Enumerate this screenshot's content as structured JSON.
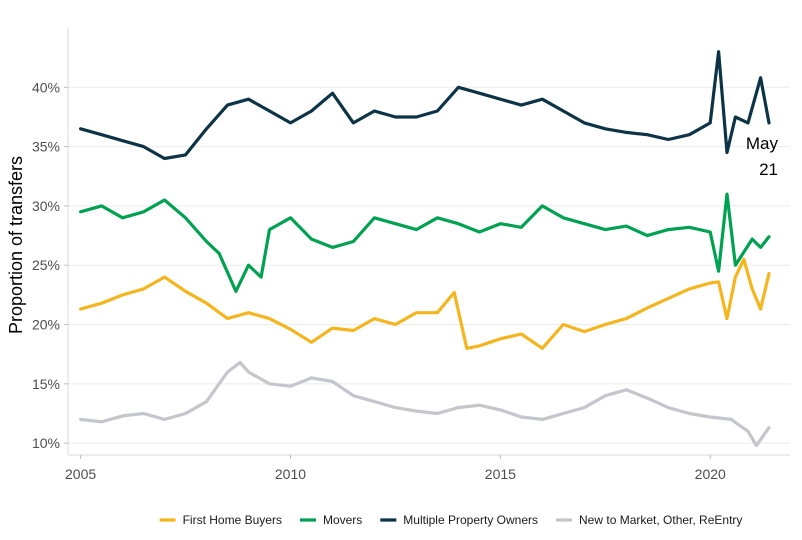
{
  "chart_data": {
    "type": "line",
    "title": "",
    "xlabel": "",
    "ylabel": "Proportion of transfers",
    "xlim": [
      2004.7,
      2021.9
    ],
    "ylim": [
      0.09,
      0.45
    ],
    "x_ticks": [
      2005,
      2010,
      2015,
      2020
    ],
    "x_tick_labels": [
      "2005",
      "2010",
      "2015",
      "2020"
    ],
    "y_ticks": [
      0.1,
      0.15,
      0.2,
      0.25,
      0.3,
      0.35,
      0.4
    ],
    "y_tick_labels": [
      "10%",
      "15%",
      "20%",
      "25%",
      "30%",
      "35%",
      "40%"
    ],
    "grid": true,
    "legend_position": "bottom",
    "annotation": {
      "lines": [
        "May",
        "21"
      ],
      "x": 2021.4
    },
    "series": [
      {
        "name": "First Home Buyers",
        "color": "#f5b51e",
        "x": [
          2005.0,
          2005.5,
          2006.0,
          2006.5,
          2007.0,
          2007.5,
          2008.0,
          2008.5,
          2009.0,
          2009.5,
          2010.0,
          2010.5,
          2011.0,
          2011.5,
          2012.0,
          2012.5,
          2013.0,
          2013.5,
          2013.9,
          2014.2,
          2014.5,
          2015.0,
          2015.5,
          2016.0,
          2016.5,
          2017.0,
          2017.5,
          2018.0,
          2018.5,
          2019.0,
          2019.5,
          2020.0,
          2020.2,
          2020.4,
          2020.6,
          2020.8,
          2021.0,
          2021.2,
          2021.4
        ],
        "values": [
          0.213,
          0.218,
          0.225,
          0.23,
          0.24,
          0.228,
          0.218,
          0.205,
          0.21,
          0.205,
          0.196,
          0.185,
          0.197,
          0.195,
          0.205,
          0.2,
          0.21,
          0.21,
          0.227,
          0.18,
          0.182,
          0.188,
          0.192,
          0.18,
          0.2,
          0.194,
          0.2,
          0.205,
          0.214,
          0.222,
          0.23,
          0.235,
          0.236,
          0.205,
          0.24,
          0.255,
          0.23,
          0.213,
          0.243
        ]
      },
      {
        "name": "Movers",
        "color": "#00a251",
        "x": [
          2005.0,
          2005.5,
          2006.0,
          2006.5,
          2007.0,
          2007.5,
          2008.0,
          2008.3,
          2008.7,
          2009.0,
          2009.3,
          2009.5,
          2010.0,
          2010.5,
          2011.0,
          2011.5,
          2012.0,
          2012.5,
          2013.0,
          2013.5,
          2014.0,
          2014.5,
          2015.0,
          2015.5,
          2016.0,
          2016.5,
          2017.0,
          2017.5,
          2018.0,
          2018.5,
          2019.0,
          2019.5,
          2020.0,
          2020.2,
          2020.4,
          2020.6,
          2021.0,
          2021.2,
          2021.4
        ],
        "values": [
          0.295,
          0.3,
          0.29,
          0.295,
          0.305,
          0.29,
          0.27,
          0.26,
          0.228,
          0.25,
          0.24,
          0.28,
          0.29,
          0.272,
          0.265,
          0.27,
          0.29,
          0.285,
          0.28,
          0.29,
          0.285,
          0.278,
          0.285,
          0.282,
          0.3,
          0.29,
          0.285,
          0.28,
          0.283,
          0.275,
          0.28,
          0.282,
          0.278,
          0.245,
          0.31,
          0.25,
          0.272,
          0.265,
          0.274
        ]
      },
      {
        "name": "Multiple Property Owners",
        "color": "#0d3346",
        "x": [
          2005.0,
          2005.5,
          2006.0,
          2006.5,
          2007.0,
          2007.5,
          2008.0,
          2008.5,
          2009.0,
          2009.5,
          2010.0,
          2010.5,
          2011.0,
          2011.5,
          2012.0,
          2012.5,
          2013.0,
          2013.5,
          2014.0,
          2014.5,
          2015.0,
          2015.5,
          2016.0,
          2016.5,
          2017.0,
          2017.5,
          2018.0,
          2018.5,
          2019.0,
          2019.5,
          2020.0,
          2020.2,
          2020.4,
          2020.6,
          2020.9,
          2021.2,
          2021.4
        ],
        "values": [
          0.365,
          0.36,
          0.355,
          0.35,
          0.34,
          0.343,
          0.365,
          0.385,
          0.39,
          0.38,
          0.37,
          0.38,
          0.395,
          0.37,
          0.38,
          0.375,
          0.375,
          0.38,
          0.4,
          0.395,
          0.39,
          0.385,
          0.39,
          0.38,
          0.37,
          0.365,
          0.362,
          0.36,
          0.356,
          0.36,
          0.37,
          0.43,
          0.345,
          0.375,
          0.37,
          0.408,
          0.37
        ]
      },
      {
        "name": "New to Market, Other, ReEntry",
        "color": "#c5c5cc",
        "x": [
          2005.0,
          2005.5,
          2006.0,
          2006.5,
          2007.0,
          2007.5,
          2008.0,
          2008.5,
          2008.8,
          2009.0,
          2009.5,
          2010.0,
          2010.5,
          2011.0,
          2011.5,
          2012.0,
          2012.5,
          2013.0,
          2013.5,
          2014.0,
          2014.5,
          2015.0,
          2015.5,
          2016.0,
          2016.5,
          2017.0,
          2017.5,
          2018.0,
          2018.5,
          2019.0,
          2019.5,
          2020.0,
          2020.5,
          2020.9,
          2021.1,
          2021.4
        ],
        "values": [
          0.12,
          0.118,
          0.123,
          0.125,
          0.12,
          0.125,
          0.135,
          0.16,
          0.168,
          0.16,
          0.15,
          0.148,
          0.155,
          0.152,
          0.14,
          0.135,
          0.13,
          0.127,
          0.125,
          0.13,
          0.132,
          0.128,
          0.122,
          0.12,
          0.125,
          0.13,
          0.14,
          0.145,
          0.138,
          0.13,
          0.125,
          0.122,
          0.12,
          0.11,
          0.098,
          0.113
        ]
      }
    ]
  }
}
